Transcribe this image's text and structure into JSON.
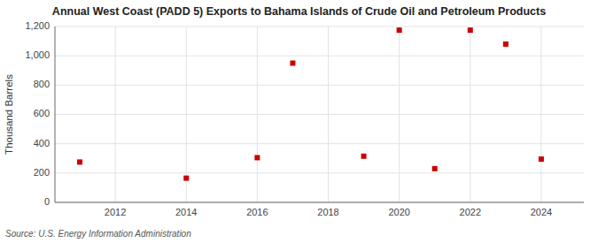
{
  "chart_data": {
    "type": "scatter",
    "title": "Annual West Coast (PADD 5) Exports to Bahama Islands of Crude Oil and Petroleum Products",
    "ylabel": "Thousand Barrels",
    "annotations": [
      "Source: U.S. Energy Information Administration"
    ],
    "x": [
      2011,
      2014,
      2016,
      2017,
      2019,
      2020,
      2021,
      2022,
      2023,
      2024
    ],
    "values": [
      275,
      165,
      305,
      950,
      315,
      1175,
      230,
      1175,
      1080,
      295
    ],
    "color": "#cc0000",
    "marker": "square",
    "xlim": [
      2010.3,
      2025.2
    ],
    "xticks": [
      2012,
      2014,
      2016,
      2018,
      2020,
      2022,
      2024
    ],
    "ylim": [
      0,
      1200
    ],
    "yticks": [
      0,
      200,
      400,
      600,
      800,
      {
        "value": 1000,
        "label": "1,000"
      },
      {
        "value": 1200,
        "label": "1,200"
      }
    ],
    "grid": true
  }
}
